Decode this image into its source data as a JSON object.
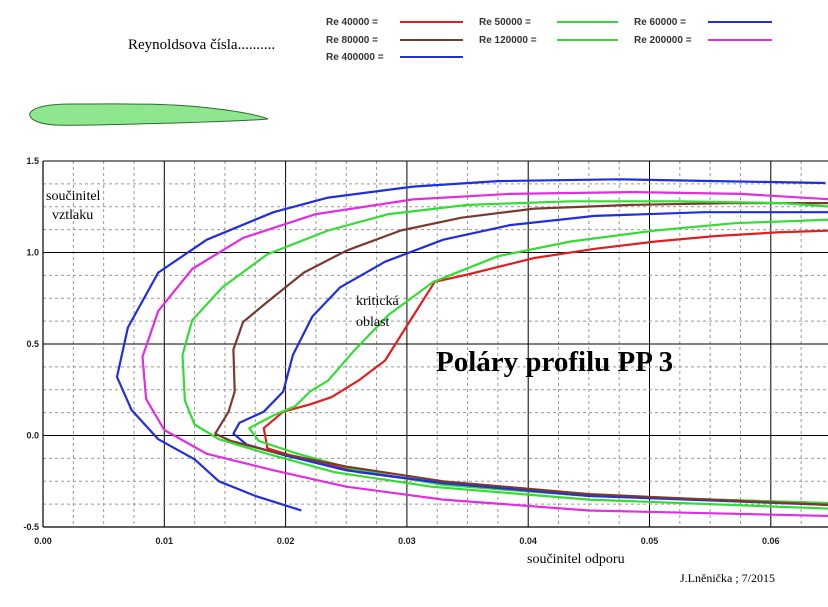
{
  "chart_data": {
    "type": "line",
    "title": "Poláry  profilu  PP 3",
    "subtitle": "Reynoldsova čísla..........",
    "xlabel": "součinitel  odporu",
    "ylabel_line1": "součinitel",
    "ylabel_line2": "vztlaku",
    "annotation_line1": "kritická",
    "annotation_line2": "oblast",
    "credit": "J.Lněnička ; 7/2015",
    "xlim": [
      0.0,
      0.065
    ],
    "ylim": [
      -0.5,
      1.5
    ],
    "grid": true,
    "legend_placement": "top",
    "x_ticks": [
      {
        "v": 0.0,
        "label": "0.00"
      },
      {
        "v": 0.01,
        "label": "0.01"
      },
      {
        "v": 0.02,
        "label": "0.02"
      },
      {
        "v": 0.03,
        "label": "0.03"
      },
      {
        "v": 0.04,
        "label": "0.04"
      },
      {
        "v": 0.05,
        "label": "0.05"
      },
      {
        "v": 0.06,
        "label": "0.06"
      }
    ],
    "y_ticks": [
      {
        "v": -0.5,
        "label": "-0.5"
      },
      {
        "v": 0.0,
        "label": "0.0"
      },
      {
        "v": 0.5,
        "label": "0.5"
      },
      {
        "v": 1.0,
        "label": "1.0"
      },
      {
        "v": 1.5,
        "label": "1.5"
      }
    ],
    "series": [
      {
        "name": "Re 40000 =",
        "color": "#e02020",
        "points": [
          [
            0.065,
            -0.37
          ],
          [
            0.045,
            -0.33
          ],
          [
            0.035,
            -0.28
          ],
          [
            0.026,
            -0.2
          ],
          [
            0.021,
            -0.12
          ],
          [
            0.0185,
            -0.07
          ],
          [
            0.0182,
            0.04
          ],
          [
            0.0198,
            0.13
          ],
          [
            0.022,
            0.17
          ],
          [
            0.0238,
            0.21
          ],
          [
            0.026,
            0.3
          ],
          [
            0.0282,
            0.41
          ],
          [
            0.0302,
            0.62
          ],
          [
            0.0323,
            0.84
          ],
          [
            0.035,
            0.88
          ],
          [
            0.0405,
            0.97
          ],
          [
            0.0455,
            1.02
          ],
          [
            0.0505,
            1.06
          ],
          [
            0.0555,
            1.09
          ],
          [
            0.0605,
            1.11
          ],
          [
            0.065,
            1.12
          ]
        ]
      },
      {
        "name": "Re 50000 =",
        "color": "#33dd33",
        "points": [
          [
            0.065,
            -0.37
          ],
          [
            0.045,
            -0.33
          ],
          [
            0.033,
            -0.27
          ],
          [
            0.026,
            -0.19
          ],
          [
            0.021,
            -0.1
          ],
          [
            0.0178,
            -0.03
          ],
          [
            0.017,
            0.04
          ],
          [
            0.019,
            0.11
          ],
          [
            0.0208,
            0.16
          ],
          [
            0.022,
            0.24
          ],
          [
            0.0235,
            0.3
          ],
          [
            0.0256,
            0.46
          ],
          [
            0.0285,
            0.66
          ],
          [
            0.0322,
            0.84
          ],
          [
            0.0375,
            0.98
          ],
          [
            0.0435,
            1.06
          ],
          [
            0.0505,
            1.12
          ],
          [
            0.057,
            1.16
          ],
          [
            0.065,
            1.18
          ]
        ]
      },
      {
        "name": "Re 60000 =",
        "color": "#1e2ee0",
        "points": [
          [
            0.065,
            -0.38
          ],
          [
            0.045,
            -0.33
          ],
          [
            0.033,
            -0.26
          ],
          [
            0.025,
            -0.19
          ],
          [
            0.02,
            -0.11
          ],
          [
            0.0168,
            -0.05
          ],
          [
            0.0157,
            0.01
          ],
          [
            0.0162,
            0.07
          ],
          [
            0.0182,
            0.13
          ],
          [
            0.0198,
            0.24
          ],
          [
            0.0206,
            0.44
          ],
          [
            0.0222,
            0.65
          ],
          [
            0.0245,
            0.81
          ],
          [
            0.0282,
            0.95
          ],
          [
            0.033,
            1.07
          ],
          [
            0.0385,
            1.15
          ],
          [
            0.0455,
            1.2
          ],
          [
            0.0545,
            1.22
          ],
          [
            0.065,
            1.22
          ]
        ]
      },
      {
        "name": "Re 80000 =",
        "color": "#7a3b2e",
        "points": [
          [
            0.065,
            -0.38
          ],
          [
            0.045,
            -0.32
          ],
          [
            0.033,
            -0.25
          ],
          [
            0.025,
            -0.17
          ],
          [
            0.019,
            -0.09
          ],
          [
            0.0155,
            -0.03
          ],
          [
            0.0142,
            0.01
          ],
          [
            0.0153,
            0.13
          ],
          [
            0.0158,
            0.24
          ],
          [
            0.0157,
            0.47
          ],
          [
            0.0165,
            0.62
          ],
          [
            0.0185,
            0.73
          ],
          [
            0.0215,
            0.89
          ],
          [
            0.025,
            1.01
          ],
          [
            0.0295,
            1.12
          ],
          [
            0.0345,
            1.19
          ],
          [
            0.0405,
            1.24
          ],
          [
            0.0485,
            1.26
          ],
          [
            0.0565,
            1.27
          ],
          [
            0.065,
            1.27
          ]
        ]
      },
      {
        "name": "Re 120000 =",
        "color": "#33dd33",
        "points": [
          [
            0.065,
            -0.4
          ],
          [
            0.045,
            -0.35
          ],
          [
            0.032,
            -0.28
          ],
          [
            0.024,
            -0.2
          ],
          [
            0.0185,
            -0.1
          ],
          [
            0.0145,
            -0.02
          ],
          [
            0.0125,
            0.06
          ],
          [
            0.0117,
            0.19
          ],
          [
            0.0115,
            0.44
          ],
          [
            0.0123,
            0.63
          ],
          [
            0.0148,
            0.81
          ],
          [
            0.0185,
            0.99
          ],
          [
            0.0235,
            1.12
          ],
          [
            0.0285,
            1.21
          ],
          [
            0.035,
            1.26
          ],
          [
            0.0435,
            1.28
          ],
          [
            0.0525,
            1.28
          ],
          [
            0.061,
            1.27
          ],
          [
            0.065,
            1.25
          ]
        ]
      },
      {
        "name": "Re 200000 =",
        "color": "#e22de2",
        "points": [
          [
            0.065,
            -0.44
          ],
          [
            0.045,
            -0.41
          ],
          [
            0.033,
            -0.35
          ],
          [
            0.025,
            -0.28
          ],
          [
            0.019,
            -0.19
          ],
          [
            0.0135,
            -0.1
          ],
          [
            0.01,
            0.03
          ],
          [
            0.0085,
            0.2
          ],
          [
            0.0082,
            0.43
          ],
          [
            0.0095,
            0.68
          ],
          [
            0.0123,
            0.91
          ],
          [
            0.0165,
            1.08
          ],
          [
            0.0225,
            1.21
          ],
          [
            0.0305,
            1.29
          ],
          [
            0.0385,
            1.32
          ],
          [
            0.0485,
            1.33
          ],
          [
            0.0575,
            1.32
          ],
          [
            0.065,
            1.29
          ]
        ]
      },
      {
        "name": "Re 400000 =",
        "color": "#1e2ee0",
        "points": [
          [
            0.0213,
            -0.41
          ],
          [
            0.0175,
            -0.33
          ],
          [
            0.0145,
            -0.25
          ],
          [
            0.0125,
            -0.13
          ],
          [
            0.0095,
            -0.02
          ],
          [
            0.0073,
            0.14
          ],
          [
            0.0061,
            0.32
          ],
          [
            0.007,
            0.59
          ],
          [
            0.0095,
            0.89
          ],
          [
            0.0135,
            1.07
          ],
          [
            0.019,
            1.22
          ],
          [
            0.0235,
            1.3
          ],
          [
            0.0305,
            1.36
          ],
          [
            0.0375,
            1.39
          ],
          [
            0.0475,
            1.4
          ],
          [
            0.0555,
            1.39
          ],
          [
            0.0645,
            1.38
          ]
        ]
      }
    ]
  }
}
